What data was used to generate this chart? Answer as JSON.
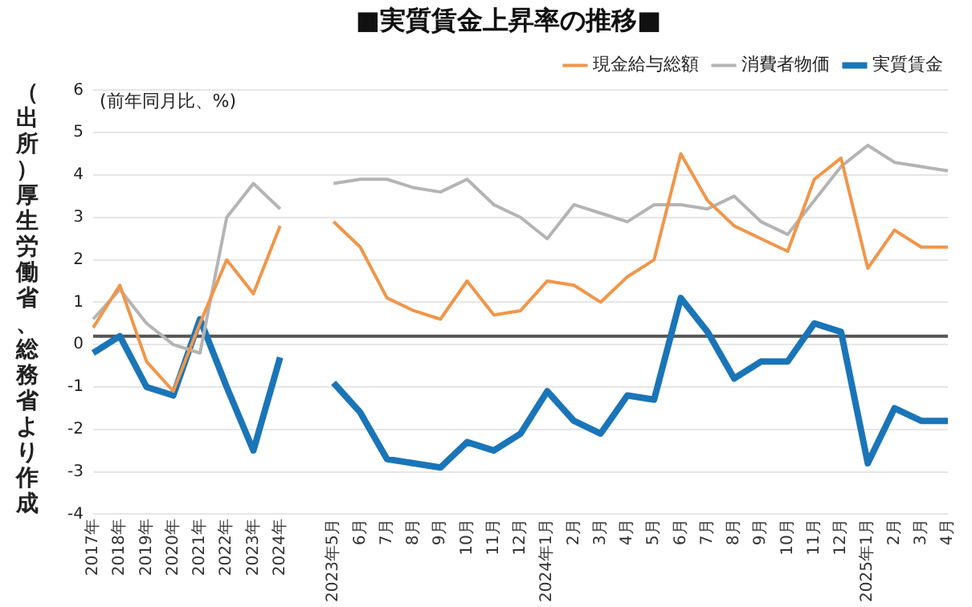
{
  "chart_data": {
    "type": "line",
    "title": "■実質賃金上昇率の推移■",
    "ylabel": "(前年同月比、%)",
    "annotations": [
      "（出所）厚生労働省、総務省より作成"
    ],
    "categories": [
      "2017年",
      "2018年",
      "2019年",
      "2020年",
      "2021年",
      "2022年",
      "2023年",
      "2024年",
      null,
      "2023年5月",
      "6月",
      "7月",
      "8月",
      "9月",
      "10月",
      "11月",
      "12月",
      "2024年1月",
      "2月",
      "3月",
      "4月",
      "5月",
      "6月",
      "7月",
      "8月",
      "9月",
      "10月",
      "11月",
      "12月",
      "2025年1月",
      "2月",
      "3月",
      "4月"
    ],
    "series": [
      {
        "name": "現金給与総額",
        "color": "#f0964a",
        "values": [
          0.4,
          1.4,
          -0.4,
          -1.1,
          0.5,
          2.0,
          1.2,
          2.8,
          null,
          2.9,
          2.3,
          1.1,
          0.8,
          0.6,
          1.5,
          0.7,
          0.8,
          1.5,
          1.4,
          1.0,
          1.6,
          2.0,
          4.5,
          3.4,
          2.8,
          2.5,
          2.2,
          3.9,
          4.4,
          1.8,
          2.7,
          2.3,
          2.3
        ]
      },
      {
        "name": "消費者物価",
        "color": "#b4b4b4",
        "values": [
          0.6,
          1.3,
          0.5,
          0.0,
          -0.2,
          3.0,
          3.8,
          3.2,
          null,
          3.8,
          3.9,
          3.9,
          3.7,
          3.6,
          3.9,
          3.3,
          3.0,
          2.5,
          3.3,
          3.1,
          2.9,
          3.3,
          3.3,
          3.2,
          3.5,
          2.9,
          2.6,
          3.4,
          4.2,
          4.7,
          4.3,
          4.2,
          4.1
        ]
      },
      {
        "name": "実質賃金",
        "color": "#1a75b8",
        "values": [
          -0.2,
          0.2,
          -1.0,
          -1.2,
          0.6,
          -1.0,
          -2.5,
          -0.3,
          null,
          -0.9,
          -1.6,
          -2.7,
          -2.8,
          -2.9,
          -2.3,
          -2.5,
          -2.1,
          -1.1,
          -1.8,
          -2.1,
          -1.2,
          -1.3,
          1.1,
          0.3,
          -0.8,
          -0.4,
          -0.4,
          0.5,
          0.3,
          -2.8,
          -1.5,
          -1.8,
          -1.8
        ]
      }
    ],
    "ylim": [
      -4,
      6
    ],
    "yticks": [
      -4,
      -3,
      -2,
      -1,
      0,
      1,
      2,
      3,
      4,
      5,
      6
    ],
    "grid": "y",
    "legend": "top right",
    "marker": "none",
    "line_style": "solid",
    "ref_lines": [
      {
        "axis": "y",
        "value": 0.2,
        "color": "#555555"
      }
    ]
  }
}
